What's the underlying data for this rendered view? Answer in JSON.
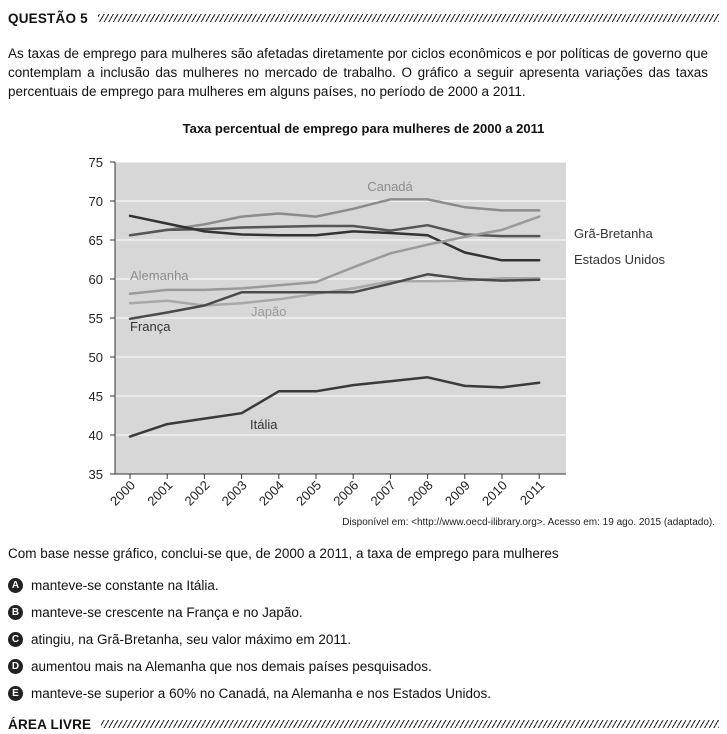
{
  "question_header": "QUESTÃO 5",
  "intro_text": "As taxas de emprego para mulheres são afetadas diretamente por ciclos econômicos e por políticas de governo que contemplam a inclusão das mulheres no mercado de trabalho. O gráfico a seguir apresenta variações das taxas percentuais de emprego para mulheres em alguns países, no período de 2000 a 2011.",
  "chart_data": {
    "type": "line",
    "title": "Taxa percentual de emprego para mulheres de 2000 a 2011",
    "x": [
      "2000",
      "2001",
      "2002",
      "2003",
      "2004",
      "2005",
      "2006",
      "2007",
      "2008",
      "2009",
      "2010",
      "2011"
    ],
    "ylim": [
      35,
      75
    ],
    "yticks": [
      35,
      40,
      45,
      50,
      55,
      60,
      65,
      70,
      75
    ],
    "grid": true,
    "background": "#d7d7d7",
    "series": [
      {
        "name": "Canadá",
        "color": "#8c8c8c",
        "width": 2.5,
        "values": [
          65.6,
          66.3,
          67.0,
          68.0,
          68.4,
          68.0,
          69.0,
          70.2,
          70.2,
          69.2,
          68.8,
          68.8
        ]
      },
      {
        "name": "Grã-Bretanha",
        "color": "#555555",
        "width": 2.5,
        "values": [
          65.6,
          66.3,
          66.4,
          66.6,
          66.7,
          66.8,
          66.8,
          66.2,
          66.9,
          65.7,
          65.5,
          65.5
        ]
      },
      {
        "name": "Estados Unidos",
        "color": "#333333",
        "width": 2.5,
        "values": [
          68.1,
          67.1,
          66.1,
          65.7,
          65.6,
          65.6,
          66.1,
          65.9,
          65.6,
          63.4,
          62.4,
          62.4
        ]
      },
      {
        "name": "Alemanha",
        "color": "#9a9a9a",
        "width": 2.5,
        "values": [
          58.1,
          58.6,
          58.6,
          58.8,
          59.2,
          59.6,
          61.5,
          63.3,
          64.4,
          65.4,
          66.3,
          68.0
        ]
      },
      {
        "name": "Japão",
        "color": "#a8a8a8",
        "width": 2.5,
        "values": [
          56.9,
          57.2,
          56.6,
          56.9,
          57.4,
          58.1,
          58.8,
          59.7,
          59.7,
          59.8,
          60.1,
          60.1
        ]
      },
      {
        "name": "França",
        "color": "#4a4a4a",
        "width": 2.5,
        "values": [
          54.9,
          55.7,
          56.6,
          58.3,
          58.3,
          58.3,
          58.3,
          59.4,
          60.6,
          60.0,
          59.8,
          59.9
        ]
      },
      {
        "name": "Itália",
        "color": "#3a3a3a",
        "width": 2.5,
        "values": [
          39.8,
          41.4,
          42.1,
          42.8,
          45.6,
          45.6,
          46.4,
          46.9,
          47.4,
          46.3,
          46.1,
          46.7
        ]
      }
    ],
    "labels": {
      "canada": "Canadá",
      "gra_bretanha": "Grã-Bretanha",
      "estados_unidos": "Estados Unidos",
      "alemanha": "Alemanha",
      "japao": "Japão",
      "franca": "França",
      "italia": "Itália"
    }
  },
  "source": "Disponível em: <http://www.oecd-ilibrary.org>. Acesso em: 19 ago. 2015 (adaptado).",
  "question": "Com base nesse gráfico, conclui-se que, de 2000 a 2011, a taxa de emprego para mulheres",
  "options": [
    {
      "letter": "A",
      "text": "manteve-se constante na Itália."
    },
    {
      "letter": "B",
      "text": "manteve-se crescente na França e no Japão."
    },
    {
      "letter": "C",
      "text": "atingiu, na Grã-Bretanha, seu valor máximo em 2011."
    },
    {
      "letter": "D",
      "text": "aumentou mais na Alemanha que nos demais países pesquisados."
    },
    {
      "letter": "E",
      "text": "manteve-se superior a 60% no Canadá, na Alemanha e nos Estados Unidos."
    }
  ],
  "footer_header": "ÁREA LIVRE"
}
